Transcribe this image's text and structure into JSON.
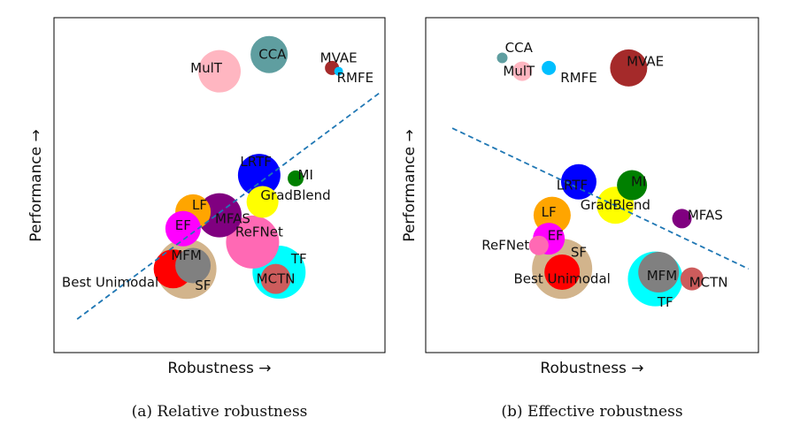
{
  "chart_data": [
    {
      "type": "scatter",
      "caption": "(a) Relative robustness",
      "xlabel": "Robustness →",
      "ylabel": "Performance →",
      "xlim": [
        0,
        1
      ],
      "ylim": [
        0,
        1
      ],
      "grid": false,
      "points": [
        {
          "label": "SF",
          "x": 0.4,
          "y": 0.25,
          "size": 34,
          "color": "#d2b48c",
          "lx": 0.45,
          "ly": 0.2
        },
        {
          "label": "Best Unimodal",
          "x": 0.36,
          "y": 0.25,
          "size": 22,
          "color": "#ff0000",
          "lx": 0.17,
          "ly": 0.21
        },
        {
          "label": "MFM",
          "x": 0.42,
          "y": 0.26,
          "size": 20,
          "color": "#808080",
          "lx": 0.4,
          "ly": 0.29
        },
        {
          "label": "TF",
          "x": 0.68,
          "y": 0.24,
          "size": 30,
          "color": "#00ffff",
          "lx": 0.74,
          "ly": 0.28
        },
        {
          "label": "MCTN",
          "x": 0.67,
          "y": 0.22,
          "size": 17,
          "color": "#cd5c5c",
          "lx": 0.67,
          "ly": 0.22
        },
        {
          "label": "ReFNet",
          "x": 0.6,
          "y": 0.33,
          "size": 30,
          "color": "#ff69b4",
          "lx": 0.62,
          "ly": 0.36
        },
        {
          "label": "MFAS",
          "x": 0.5,
          "y": 0.41,
          "size": 25,
          "color": "#800080",
          "lx": 0.54,
          "ly": 0.4
        },
        {
          "label": "LF",
          "x": 0.42,
          "y": 0.42,
          "size": 20,
          "color": "#ffa500",
          "lx": 0.44,
          "ly": 0.44
        },
        {
          "label": "EF",
          "x": 0.39,
          "y": 0.37,
          "size": 20,
          "color": "#ff00ff",
          "lx": 0.39,
          "ly": 0.38
        },
        {
          "label": "GradBlend",
          "x": 0.63,
          "y": 0.45,
          "size": 18,
          "color": "#ffff00",
          "lx": 0.73,
          "ly": 0.47
        },
        {
          "label": "LRTF",
          "x": 0.62,
          "y": 0.53,
          "size": 24,
          "color": "#0000ff",
          "lx": 0.61,
          "ly": 0.57
        },
        {
          "label": "MI",
          "x": 0.73,
          "y": 0.52,
          "size": 9,
          "color": "#008000",
          "lx": 0.76,
          "ly": 0.53
        },
        {
          "label": "MulT",
          "x": 0.5,
          "y": 0.84,
          "size": 24,
          "color": "#ffb6c1",
          "lx": 0.46,
          "ly": 0.85
        },
        {
          "label": "CCA",
          "x": 0.65,
          "y": 0.89,
          "size": 21,
          "color": "#5f9ea0",
          "lx": 0.66,
          "ly": 0.89
        },
        {
          "label": "MVAE",
          "x": 0.84,
          "y": 0.85,
          "size": 8,
          "color": "#a52a2a",
          "lx": 0.86,
          "ly": 0.88
        },
        {
          "label": "RMFE",
          "x": 0.86,
          "y": 0.84,
          "size": 5,
          "color": "#00bfff",
          "lx": 0.91,
          "ly": 0.82
        }
      ],
      "trendline": {
        "from": [
          0.07,
          0.1
        ],
        "to": [
          0.99,
          0.78
        ],
        "color": "#1f77b4",
        "style": "dashed"
      }
    },
    {
      "type": "scatter",
      "caption": "(b) Effective robustness",
      "xlabel": "Robustness →",
      "ylabel": "Performance →",
      "xlim": [
        0,
        1
      ],
      "ylim": [
        0,
        1
      ],
      "grid": false,
      "points": [
        {
          "label": "SF",
          "x": 0.41,
          "y": 0.25,
          "size": 34,
          "color": "#d2b48c",
          "lx": 0.46,
          "ly": 0.3
        },
        {
          "label": "Best Unimodal",
          "x": 0.41,
          "y": 0.24,
          "size": 20,
          "color": "#ff0000",
          "lx": 0.41,
          "ly": 0.22
        },
        {
          "label": "TF",
          "x": 0.69,
          "y": 0.22,
          "size": 31,
          "color": "#00ffff",
          "lx": 0.72,
          "ly": 0.15
        },
        {
          "label": "MFM",
          "x": 0.7,
          "y": 0.24,
          "size": 23,
          "color": "#808080",
          "lx": 0.71,
          "ly": 0.23
        },
        {
          "label": "MCTN",
          "x": 0.8,
          "y": 0.22,
          "size": 13,
          "color": "#cd5c5c",
          "lx": 0.85,
          "ly": 0.21
        },
        {
          "label": "ReFNet",
          "x": 0.34,
          "y": 0.32,
          "size": 11,
          "color": "#ff69b4",
          "lx": 0.24,
          "ly": 0.32
        },
        {
          "label": "EF",
          "x": 0.37,
          "y": 0.34,
          "size": 18,
          "color": "#ff00ff",
          "lx": 0.39,
          "ly": 0.35
        },
        {
          "label": "LF",
          "x": 0.38,
          "y": 0.41,
          "size": 21,
          "color": "#ffa500",
          "lx": 0.37,
          "ly": 0.42
        },
        {
          "label": "GradBlend",
          "x": 0.57,
          "y": 0.44,
          "size": 21,
          "color": "#ffff00",
          "lx": 0.57,
          "ly": 0.44
        },
        {
          "label": "LRTF",
          "x": 0.46,
          "y": 0.51,
          "size": 20,
          "color": "#0000ff",
          "lx": 0.44,
          "ly": 0.5
        },
        {
          "label": "MI",
          "x": 0.62,
          "y": 0.5,
          "size": 17,
          "color": "#008000",
          "lx": 0.64,
          "ly": 0.51
        },
        {
          "label": "MFAS",
          "x": 0.77,
          "y": 0.4,
          "size": 11,
          "color": "#800080",
          "lx": 0.84,
          "ly": 0.41
        },
        {
          "label": "CCA",
          "x": 0.23,
          "y": 0.88,
          "size": 6,
          "color": "#5f9ea0",
          "lx": 0.28,
          "ly": 0.91
        },
        {
          "label": "MulT",
          "x": 0.29,
          "y": 0.84,
          "size": 11,
          "color": "#ffb6c1",
          "lx": 0.28,
          "ly": 0.84
        },
        {
          "label": "RMFE",
          "x": 0.37,
          "y": 0.85,
          "size": 8,
          "color": "#00bfff",
          "lx": 0.46,
          "ly": 0.82
        },
        {
          "label": "MVAE",
          "x": 0.61,
          "y": 0.85,
          "size": 21,
          "color": "#a52a2a",
          "lx": 0.66,
          "ly": 0.87
        }
      ],
      "trendline": {
        "from": [
          0.08,
          0.67
        ],
        "to": [
          0.97,
          0.25
        ],
        "color": "#1f77b4",
        "style": "dashed"
      }
    }
  ]
}
